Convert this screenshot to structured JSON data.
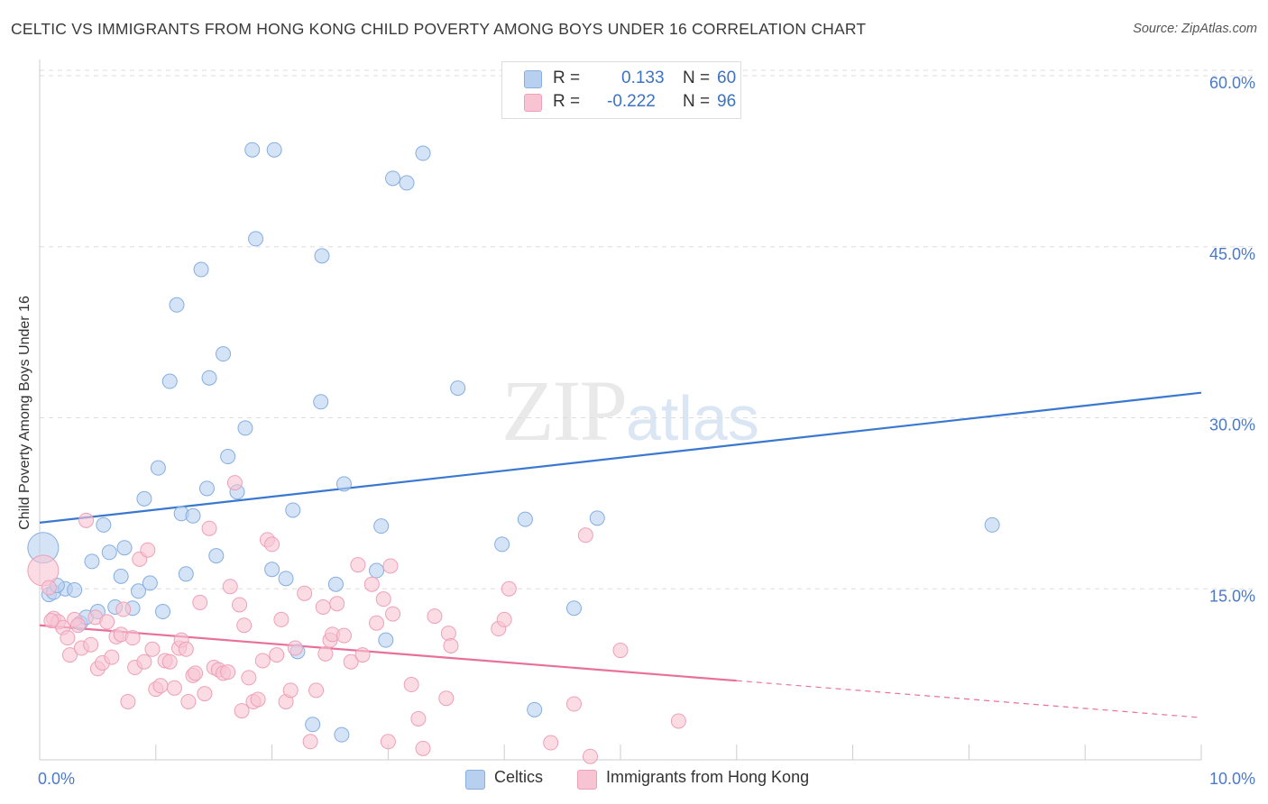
{
  "title": "CELTIC VS IMMIGRANTS FROM HONG KONG CHILD POVERTY AMONG BOYS UNDER 16 CORRELATION CHART",
  "source": "Source: ZipAtlas.com",
  "watermark": {
    "zip": "ZIP",
    "atlas": "atlas"
  },
  "colors": {
    "celtic_fill": "#b8d0f0",
    "celtic_stroke": "#86aee0",
    "celtic_line": "#3a78d0",
    "hk_fill": "#f8c4d4",
    "hk_stroke": "#eea0b8",
    "hk_line": "#e8709a",
    "grid": "#dddddd",
    "axis": "#cccccc",
    "tick_text": "#4a7ac8"
  },
  "legend": {
    "celtic": {
      "r_label": "R =",
      "r_value": "0.133",
      "n_label": "N =",
      "n_value": "60"
    },
    "hk": {
      "r_label": "R =",
      "r_value": "-0.222",
      "n_label": "N =",
      "n_value": "96"
    }
  },
  "bottom_legend": {
    "celtic": "Celtics",
    "hk": "Immigrants from Hong Kong"
  },
  "chart_data": {
    "type": "scatter",
    "title": "CELTIC VS IMMIGRANTS FROM HONG KONG CHILD POVERTY AMONG BOYS UNDER 16 CORRELATION CHART",
    "xlabel": "",
    "ylabel": "Child Poverty Among Boys Under 16",
    "xlim": [
      0,
      10
    ],
    "ylim": [
      0,
      60
    ],
    "x_tick_labels": [
      {
        "value": 0,
        "label": "0.0%"
      },
      {
        "value": 10,
        "label": "10.0%"
      }
    ],
    "y_tick_labels": [
      {
        "value": 15,
        "label": "15.0%"
      },
      {
        "value": 30,
        "label": "30.0%"
      },
      {
        "value": 45,
        "label": "45.0%"
      },
      {
        "value": 60,
        "label": "60.0%"
      }
    ],
    "x_minor_ticks": [
      0,
      1,
      2,
      3,
      4,
      5,
      6,
      7,
      8,
      9,
      10
    ],
    "series": [
      {
        "name": "Celtics",
        "R": 0.133,
        "N": 60,
        "trend": {
          "x": [
            0,
            10
          ],
          "y": [
            20.8,
            32.2
          ],
          "solid_to": 10
        },
        "points": [
          [
            0.03,
            18.6,
            "big"
          ],
          [
            0.08,
            14.5
          ],
          [
            0.12,
            14.7
          ],
          [
            0.22,
            15.0
          ],
          [
            0.3,
            14.9
          ],
          [
            0.35,
            12.0
          ],
          [
            0.4,
            12.5
          ],
          [
            0.45,
            17.4
          ],
          [
            0.5,
            13.0
          ],
          [
            0.55,
            20.6
          ],
          [
            0.6,
            18.2
          ],
          [
            0.65,
            13.4
          ],
          [
            0.7,
            16.1
          ],
          [
            0.73,
            18.6
          ],
          [
            0.8,
            13.3
          ],
          [
            0.85,
            14.8
          ],
          [
            0.9,
            22.9
          ],
          [
            0.95,
            15.5
          ],
          [
            1.02,
            25.6
          ],
          [
            1.06,
            13.0
          ],
          [
            1.12,
            33.2
          ],
          [
            1.18,
            39.9
          ],
          [
            1.22,
            21.6
          ],
          [
            1.26,
            16.3
          ],
          [
            1.32,
            21.4
          ],
          [
            1.39,
            43.0
          ],
          [
            1.44,
            23.8
          ],
          [
            1.46,
            33.5
          ],
          [
            1.52,
            17.9
          ],
          [
            1.58,
            35.6
          ],
          [
            1.62,
            26.6
          ],
          [
            1.7,
            23.5
          ],
          [
            1.77,
            29.1
          ],
          [
            1.83,
            53.5
          ],
          [
            1.86,
            45.7
          ],
          [
            2.02,
            53.5
          ],
          [
            2.0,
            16.7
          ],
          [
            2.12,
            15.9
          ],
          [
            2.18,
            21.9
          ],
          [
            2.22,
            9.5
          ],
          [
            2.35,
            3.1
          ],
          [
            2.42,
            31.4
          ],
          [
            2.43,
            44.2
          ],
          [
            2.55,
            15.4
          ],
          [
            2.6,
            2.2
          ],
          [
            2.62,
            24.2
          ],
          [
            2.9,
            16.6
          ],
          [
            2.94,
            20.5
          ],
          [
            2.98,
            10.5
          ],
          [
            3.04,
            51.0
          ],
          [
            3.16,
            50.6
          ],
          [
            3.3,
            53.2
          ],
          [
            3.6,
            32.6
          ],
          [
            3.98,
            18.9
          ],
          [
            4.18,
            21.1
          ],
          [
            4.26,
            4.4
          ],
          [
            4.6,
            13.3
          ],
          [
            4.8,
            21.2
          ],
          [
            8.2,
            20.6
          ],
          [
            0.15,
            15.3
          ]
        ]
      },
      {
        "name": "Immigrants from Hong Kong",
        "R": -0.222,
        "N": 96,
        "trend": {
          "x": [
            0,
            10
          ],
          "y": [
            11.8,
            3.7
          ],
          "solid_to": 6.0
        },
        "points": [
          [
            0.03,
            16.6,
            "big"
          ],
          [
            0.08,
            15.1
          ],
          [
            0.12,
            12.4
          ],
          [
            0.16,
            12.1
          ],
          [
            0.2,
            11.6
          ],
          [
            0.24,
            10.7
          ],
          [
            0.26,
            9.2
          ],
          [
            0.3,
            12.3
          ],
          [
            0.33,
            11.8
          ],
          [
            0.36,
            9.8
          ],
          [
            0.4,
            21.0
          ],
          [
            0.44,
            10.1
          ],
          [
            0.48,
            12.5
          ],
          [
            0.5,
            8.0
          ],
          [
            0.54,
            8.5
          ],
          [
            0.58,
            12.1
          ],
          [
            0.62,
            9.0
          ],
          [
            0.66,
            10.8
          ],
          [
            0.7,
            11.0
          ],
          [
            0.72,
            13.2
          ],
          [
            0.76,
            5.1
          ],
          [
            0.8,
            10.7
          ],
          [
            0.82,
            8.1
          ],
          [
            0.86,
            17.6
          ],
          [
            0.9,
            8.6
          ],
          [
            0.93,
            18.4
          ],
          [
            0.97,
            9.7
          ],
          [
            1.0,
            6.2
          ],
          [
            1.04,
            6.5
          ],
          [
            1.08,
            8.7
          ],
          [
            1.12,
            8.6
          ],
          [
            1.16,
            6.3
          ],
          [
            1.2,
            9.8
          ],
          [
            1.22,
            10.5
          ],
          [
            1.26,
            9.7
          ],
          [
            1.28,
            5.1
          ],
          [
            1.32,
            7.4
          ],
          [
            1.34,
            7.6
          ],
          [
            1.38,
            13.8
          ],
          [
            1.42,
            5.8
          ],
          [
            1.46,
            20.3
          ],
          [
            1.5,
            8.1
          ],
          [
            1.54,
            7.9
          ],
          [
            1.58,
            7.6
          ],
          [
            1.62,
            7.7
          ],
          [
            1.64,
            15.2
          ],
          [
            1.68,
            24.3
          ],
          [
            1.72,
            13.6
          ],
          [
            1.74,
            4.3
          ],
          [
            1.76,
            11.8
          ],
          [
            1.8,
            7.2
          ],
          [
            1.84,
            5.1
          ],
          [
            1.88,
            5.3
          ],
          [
            1.92,
            8.7
          ],
          [
            1.96,
            19.3
          ],
          [
            2.0,
            18.9
          ],
          [
            2.04,
            9.2
          ],
          [
            2.08,
            12.3
          ],
          [
            2.12,
            5.1
          ],
          [
            2.16,
            6.1
          ],
          [
            2.2,
            9.8
          ],
          [
            2.28,
            14.6
          ],
          [
            2.33,
            1.6
          ],
          [
            2.38,
            6.1
          ],
          [
            2.44,
            13.4
          ],
          [
            2.46,
            9.3
          ],
          [
            2.5,
            10.5
          ],
          [
            2.52,
            11.0
          ],
          [
            2.56,
            13.7
          ],
          [
            2.62,
            10.9
          ],
          [
            2.68,
            8.6
          ],
          [
            2.74,
            17.1
          ],
          [
            2.78,
            9.2
          ],
          [
            2.86,
            15.4
          ],
          [
            2.9,
            12.0
          ],
          [
            2.96,
            14.1
          ],
          [
            3.0,
            1.6
          ],
          [
            3.02,
            17.0
          ],
          [
            3.04,
            12.8
          ],
          [
            3.2,
            6.6
          ],
          [
            3.26,
            3.6
          ],
          [
            3.3,
            1.0
          ],
          [
            3.4,
            12.6
          ],
          [
            3.5,
            5.4
          ],
          [
            3.52,
            11.1
          ],
          [
            3.54,
            10.0
          ],
          [
            3.95,
            11.5
          ],
          [
            4.0,
            12.3
          ],
          [
            4.04,
            15.0
          ],
          [
            4.4,
            1.5
          ],
          [
            4.6,
            4.9
          ],
          [
            4.7,
            19.7
          ],
          [
            4.74,
            0.3
          ],
          [
            5.0,
            9.6
          ],
          [
            5.5,
            3.4
          ],
          [
            0.1,
            12.2
          ]
        ]
      }
    ]
  }
}
